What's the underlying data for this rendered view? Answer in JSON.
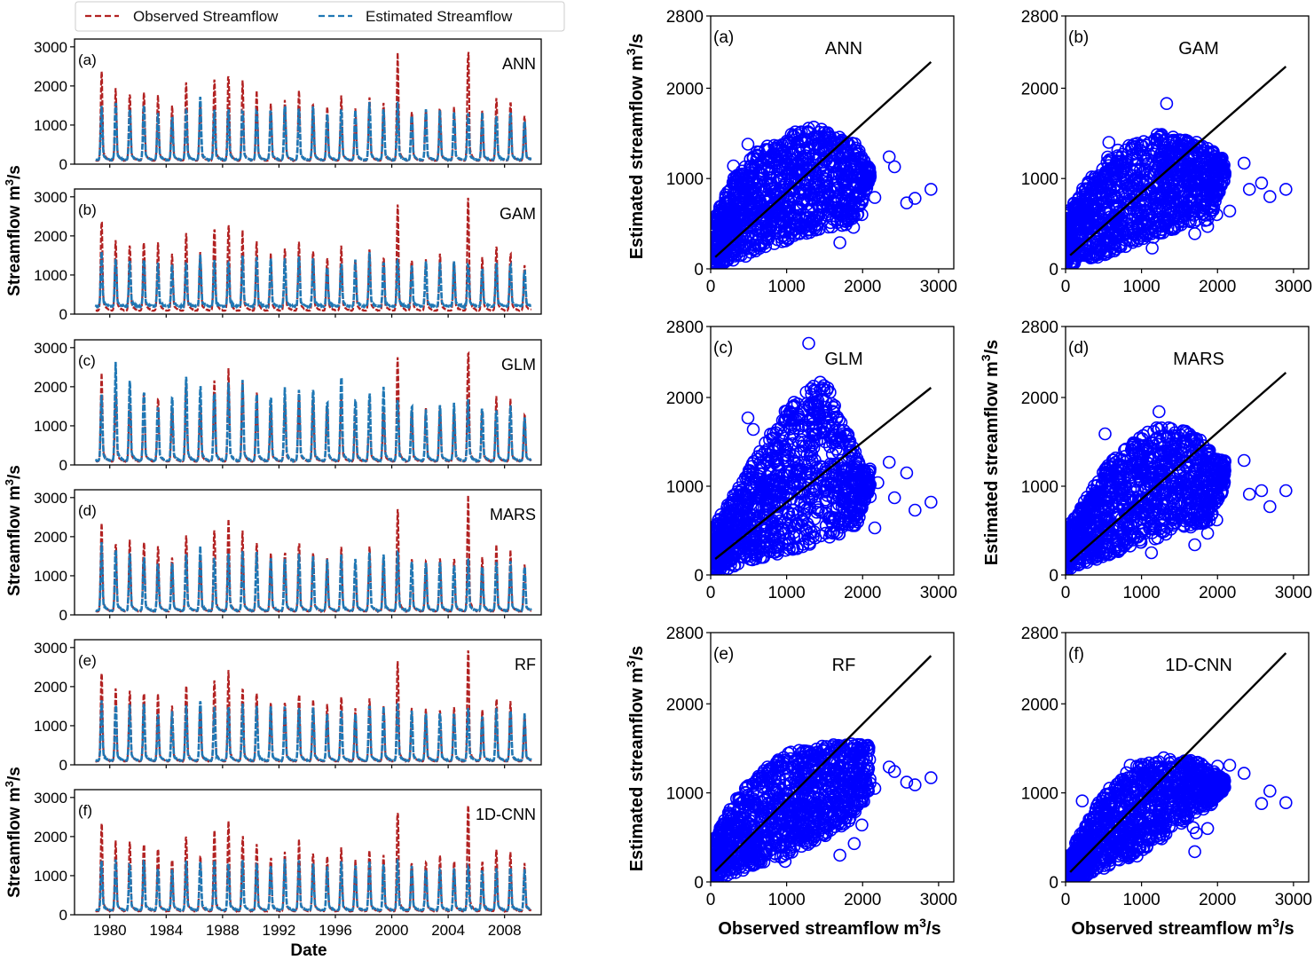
{
  "legend": {
    "items": [
      {
        "label": "Observed Streamflow",
        "color": "#b22222",
        "style": "dashed"
      },
      {
        "label": "Estimated Streamflow",
        "color": "#1f77b4",
        "style": "dashed"
      }
    ]
  },
  "colors": {
    "observed": "#b22222",
    "estimated": "#1f77b4",
    "scatter_marker": "#0000ff",
    "fit_line": "#000000"
  },
  "chart_data": [
    {
      "type": "line",
      "group": "time-series",
      "xlabel": "Date",
      "ylabel": "Streamflow m³/s",
      "x_ticks": [
        "1980",
        "1984",
        "1988",
        "1992",
        "1996",
        "2000",
        "2004",
        "2008"
      ],
      "x_range": [
        1977.5,
        2010.6
      ],
      "data_range": [
        1979.0,
        2009.9
      ],
      "y_ticks": [
        0,
        1000,
        2000,
        3000
      ],
      "ylim": [
        0,
        3200
      ],
      "series_names": [
        "Observed Streamflow",
        "Estimated Streamflow"
      ],
      "observed_annual_peaks": {
        "years": [
          1979,
          1980,
          1981,
          1982,
          1983,
          1984,
          1985,
          1986,
          1987,
          1988,
          1989,
          1990,
          1991,
          1992,
          1993,
          1994,
          1995,
          1996,
          1997,
          1998,
          1999,
          2000,
          2001,
          2002,
          2003,
          2004,
          2005,
          2006,
          2007,
          2008,
          2009
        ],
        "values": [
          2380,
          1880,
          1850,
          1890,
          1740,
          1460,
          2080,
          1530,
          2200,
          2350,
          2040,
          1830,
          1510,
          1620,
          1850,
          1610,
          1470,
          1700,
          1400,
          1700,
          1500,
          2700,
          1400,
          1400,
          1480,
          1400,
          2920,
          1400,
          1700,
          1600,
          1270
        ]
      },
      "panels": [
        {
          "tag": "(a)",
          "model": "ANN",
          "estimated_annual_peaks": [
            1400,
            1600,
            1420,
            1450,
            1270,
            1230,
            1370,
            1620,
            1380,
            1420,
            1430,
            1430,
            1380,
            1460,
            1450,
            1440,
            1260,
            1380,
            1350,
            1600,
            1480,
            1500,
            1300,
            1330,
            1300,
            1330,
            1360,
            1230,
            1320,
            1340,
            1150
          ]
        },
        {
          "tag": "(b)",
          "model": "GAM",
          "estimated_annual_peaks": [
            1500,
            1420,
            1350,
            1380,
            1250,
            1200,
            1300,
            1500,
            1350,
            1380,
            1400,
            1420,
            1380,
            1430,
            1420,
            1400,
            1280,
            1350,
            1300,
            1500,
            1400,
            1450,
            1300,
            1300,
            1280,
            1300,
            1350,
            1250,
            1300,
            1320,
            1150
          ]
        },
        {
          "tag": "(c)",
          "model": "GLM",
          "estimated_annual_peaks": [
            1700,
            2550,
            2100,
            1900,
            1600,
            1700,
            2200,
            2000,
            1900,
            2000,
            2050,
            1850,
            1800,
            1900,
            2000,
            1900,
            1600,
            2250,
            1700,
            1800,
            1900,
            1700,
            1500,
            1400,
            1500,
            1500,
            1600,
            1500,
            1500,
            1450,
            1300
          ]
        },
        {
          "tag": "(d)",
          "model": "MARS",
          "estimated_annual_peaks": [
            1750,
            1700,
            1500,
            1500,
            1350,
            1350,
            1500,
            1650,
            1500,
            1550,
            1550,
            1500,
            1450,
            1500,
            1520,
            1500,
            1350,
            1450,
            1400,
            1550,
            1500,
            1600,
            1350,
            1350,
            1350,
            1350,
            1400,
            1300,
            1350,
            1350,
            1250
          ]
        },
        {
          "tag": "(e)",
          "model": "RF",
          "estimated_annual_peaks": [
            1550,
            1500,
            1450,
            1500,
            1350,
            1300,
            1450,
            1600,
            1450,
            1500,
            1500,
            1480,
            1420,
            1480,
            1480,
            1480,
            1350,
            1420,
            1400,
            1550,
            1480,
            1550,
            1350,
            1350,
            1350,
            1350,
            1450,
            1300,
            1350,
            1380,
            1250
          ]
        },
        {
          "tag": "(f)",
          "model": "1D-CNN",
          "estimated_annual_peaks": [
            1300,
            1400,
            1350,
            1350,
            1200,
            1150,
            1300,
            1400,
            1300,
            1330,
            1350,
            1350,
            1300,
            1350,
            1350,
            1330,
            1200,
            1300,
            1250,
            1350,
            1300,
            1350,
            1200,
            1200,
            1200,
            1200,
            1250,
            1150,
            1200,
            1250,
            1100
          ]
        }
      ]
    },
    {
      "type": "scatter",
      "group": "observed-vs-estimated",
      "xlabel": "Observed streamflow m³/s",
      "ylabel": "Estimated streamflow m³/s",
      "x_ticks": [
        0,
        1000,
        2000,
        3000
      ],
      "xlim": [
        0,
        3200
      ],
      "y_ticks": [
        0,
        1000,
        2000,
        2800
      ],
      "ylim": [
        0,
        2800
      ],
      "marker": "open-circle",
      "panels": [
        {
          "tag": "(a)",
          "model": "ANN",
          "fit_line": [
            [
              60,
              130
            ],
            [
              2900,
              2290
            ]
          ],
          "cloud": {
            "upper_edge": [
              [
                0,
                500
              ],
              [
                300,
                1000
              ],
              [
                600,
                1300
              ],
              [
                1300,
                1600
              ],
              [
                1900,
                1400
              ],
              [
                2100,
                1100
              ]
            ],
            "lower_edge": [
              [
                0,
                0
              ],
              [
                500,
                150
              ],
              [
                1000,
                300
              ],
              [
                1500,
                450
              ],
              [
                1900,
                500
              ],
              [
                2100,
                1000
              ]
            ]
          },
          "outliers": [
            [
              1700,
              290
            ],
            [
              1880,
              460
            ],
            [
              1990,
              600
            ],
            [
              2160,
              790
            ],
            [
              2350,
              1240
            ],
            [
              2420,
              1130
            ],
            [
              2580,
              730
            ],
            [
              2690,
              780
            ],
            [
              2900,
              880
            ],
            [
              490,
              1380
            ],
            [
              300,
              1140
            ]
          ]
        },
        {
          "tag": "(b)",
          "model": "GAM",
          "fit_line": [
            [
              60,
              150
            ],
            [
              2900,
              2240
            ]
          ],
          "cloud": {
            "upper_edge": [
              [
                0,
                600
              ],
              [
                300,
                1000
              ],
              [
                600,
                1300
              ],
              [
                1200,
                1500
              ],
              [
                1800,
                1400
              ],
              [
                2100,
                1200
              ]
            ],
            "lower_edge": [
              [
                0,
                0
              ],
              [
                500,
                150
              ],
              [
                1000,
                300
              ],
              [
                1500,
                450
              ],
              [
                1900,
                550
              ],
              [
                2100,
                1000
              ]
            ]
          },
          "outliers": [
            [
              1330,
              1830
            ],
            [
              1140,
              230
            ],
            [
              1700,
              390
            ],
            [
              1870,
              470
            ],
            [
              1990,
              600
            ],
            [
              2160,
              640
            ],
            [
              2350,
              1170
            ],
            [
              2420,
              880
            ],
            [
              2580,
              950
            ],
            [
              2690,
              800
            ],
            [
              2900,
              880
            ],
            [
              570,
              1400
            ]
          ]
        },
        {
          "tag": "(c)",
          "model": "GLM",
          "fit_line": [
            [
              60,
              180
            ],
            [
              2900,
              2110
            ]
          ],
          "cloud": {
            "upper_edge": [
              [
                0,
                500
              ],
              [
                300,
                900
              ],
              [
                700,
                1500
              ],
              [
                1100,
                2000
              ],
              [
                1500,
                2250
              ],
              [
                1800,
                1600
              ],
              [
                2000,
                1200
              ]
            ],
            "lower_edge": [
              [
                0,
                0
              ],
              [
                500,
                150
              ],
              [
                1000,
                250
              ],
              [
                1500,
                400
              ],
              [
                1900,
                500
              ],
              [
                2100,
                1000
              ]
            ]
          },
          "outliers": [
            [
              1290,
              2610
            ],
            [
              490,
              1770
            ],
            [
              560,
              1640
            ],
            [
              2160,
              530
            ],
            [
              2350,
              1270
            ],
            [
              2420,
              870
            ],
            [
              2580,
              1150
            ],
            [
              2690,
              730
            ],
            [
              2900,
              820
            ],
            [
              2100,
              880
            ],
            [
              2200,
              1040
            ]
          ]
        },
        {
          "tag": "(d)",
          "model": "MARS",
          "fit_line": [
            [
              60,
              150
            ],
            [
              2900,
              2280
            ]
          ],
          "cloud": {
            "upper_edge": [
              [
                0,
                500
              ],
              [
                300,
                900
              ],
              [
                600,
                1300
              ],
              [
                1200,
                1700
              ],
              [
                1700,
                1600
              ],
              [
                2000,
                1300
              ]
            ],
            "lower_edge": [
              [
                0,
                50
              ],
              [
                500,
                200
              ],
              [
                1000,
                350
              ],
              [
                1500,
                500
              ],
              [
                1900,
                600
              ],
              [
                2100,
                1000
              ]
            ]
          },
          "outliers": [
            [
              520,
              1590
            ],
            [
              1230,
              1840
            ],
            [
              1130,
              250
            ],
            [
              1700,
              340
            ],
            [
              1870,
              470
            ],
            [
              1990,
              620
            ],
            [
              2350,
              1290
            ],
            [
              2420,
              910
            ],
            [
              2580,
              950
            ],
            [
              2690,
              770
            ],
            [
              2900,
              950
            ]
          ]
        },
        {
          "tag": "(e)",
          "model": "RF",
          "fit_line": [
            [
              60,
              120
            ],
            [
              2900,
              2540
            ]
          ],
          "cloud": {
            "upper_edge": [
              [
                0,
                400
              ],
              [
                300,
                900
              ],
              [
                600,
                1200
              ],
              [
                1000,
                1450
              ],
              [
                1600,
                1550
              ],
              [
                2000,
                1550
              ]
            ],
            "lower_edge": [
              [
                0,
                0
              ],
              [
                500,
                150
              ],
              [
                1000,
                300
              ],
              [
                1500,
                500
              ],
              [
                1900,
                700
              ],
              [
                2100,
                1050
              ]
            ]
          },
          "outliers": [
            [
              1700,
              300
            ],
            [
              1890,
              430
            ],
            [
              980,
              230
            ],
            [
              1990,
              640
            ],
            [
              2160,
              1050
            ],
            [
              2350,
              1290
            ],
            [
              2420,
              1240
            ],
            [
              2580,
              1120
            ],
            [
              2690,
              1090
            ],
            [
              2900,
              1170
            ]
          ]
        },
        {
          "tag": "(f)",
          "model": "1D-CNN",
          "fit_line": [
            [
              60,
              110
            ],
            [
              2900,
              2570
            ]
          ],
          "cloud": {
            "upper_edge": [
              [
                0,
                250
              ],
              [
                300,
                700
              ],
              [
                500,
                1000
              ],
              [
                900,
                1300
              ],
              [
                1300,
                1400
              ],
              [
                1800,
                1350
              ],
              [
                2100,
                1150
              ]
            ],
            "lower_edge": [
              [
                100,
                0
              ],
              [
                500,
                150
              ],
              [
                900,
                300
              ],
              [
                1300,
                500
              ],
              [
                1600,
                700
              ],
              [
                1900,
                850
              ],
              [
                2100,
                1050
              ]
            ]
          },
          "outliers": [
            [
              1700,
              340
            ],
            [
              1870,
              600
            ],
            [
              940,
              290
            ],
            [
              830,
              270
            ],
            [
              1680,
              610
            ],
            [
              1720,
              550
            ],
            [
              2160,
              1310
            ],
            [
              2350,
              1220
            ],
            [
              2580,
              880
            ],
            [
              2690,
              1020
            ],
            [
              2900,
              890
            ],
            [
              220,
              910
            ],
            [
              850,
              1310
            ],
            [
              2000,
              1300
            ]
          ]
        }
      ]
    }
  ]
}
